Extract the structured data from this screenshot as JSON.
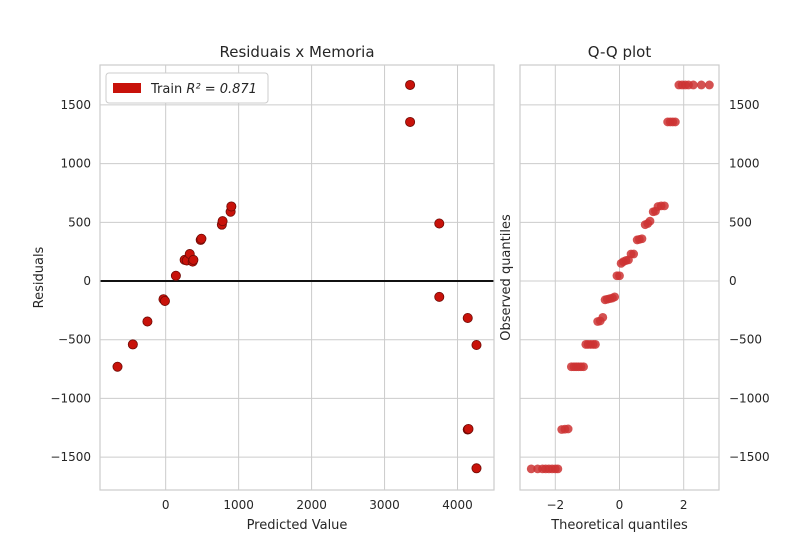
{
  "chart_data": [
    {
      "type": "scatter",
      "title": "Residuais x Memoria",
      "xlabel": "Predicted Value",
      "ylabel": "Residuals",
      "xlim": [
        -900,
        4500
      ],
      "ylim": [
        -1780,
        1840
      ],
      "xticks": [
        0,
        1000,
        2000,
        3000,
        4000
      ],
      "yticks": [
        -1500,
        -1000,
        -500,
        0,
        500,
        1000,
        1500
      ],
      "grid": true,
      "legend": {
        "position": "top-left",
        "label_prefix": "Train ",
        "label_math": "R² = 0.871"
      },
      "zero_line": 0,
      "color": "#c8120a",
      "series": [
        {
          "name": "Train",
          "points": [
            [
              -660,
              -730
            ],
            [
              -450,
              -540
            ],
            [
              -250,
              -345
            ],
            [
              -30,
              -155
            ],
            [
              -10,
              -170
            ],
            [
              140,
              45
            ],
            [
              260,
              180
            ],
            [
              290,
              175
            ],
            [
              330,
              230
            ],
            [
              370,
              165
            ],
            [
              380,
              180
            ],
            [
              480,
              350
            ],
            [
              490,
              360
            ],
            [
              770,
              480
            ],
            [
              780,
              510
            ],
            [
              890,
              590
            ],
            [
              900,
              635
            ],
            [
              3350,
              1670
            ],
            [
              3350,
              1355
            ],
            [
              3750,
              490
            ],
            [
              3750,
              -135
            ],
            [
              4140,
              -315
            ],
            [
              4140,
              -1265
            ],
            [
              4150,
              -1260
            ],
            [
              4260,
              -545
            ],
            [
              4260,
              -1595
            ]
          ]
        }
      ]
    },
    {
      "type": "scatter",
      "title": "Q-Q plot",
      "xlabel": "Theoretical quantiles",
      "ylabel": "Observed quantiles",
      "xlim": [
        -3.1,
        3.1
      ],
      "ylim": [
        -1780,
        1840
      ],
      "xticks": [
        -2,
        0,
        2
      ],
      "yticks": [
        -1500,
        -1000,
        -500,
        0,
        500,
        1000,
        1500
      ],
      "grid": true,
      "color": "#cc3333",
      "series": [
        {
          "name": "Q-Q",
          "points": [
            [
              -2.75,
              -1600
            ],
            [
              -2.55,
              -1600
            ],
            [
              -2.4,
              -1600
            ],
            [
              -2.3,
              -1600
            ],
            [
              -2.2,
              -1600
            ],
            [
              -2.1,
              -1600
            ],
            [
              -2.0,
              -1600
            ],
            [
              -1.92,
              -1600
            ],
            [
              -1.8,
              -1265
            ],
            [
              -1.7,
              -1262
            ],
            [
              -1.6,
              -1260
            ],
            [
              -1.5,
              -730
            ],
            [
              -1.42,
              -730
            ],
            [
              -1.35,
              -730
            ],
            [
              -1.28,
              -730
            ],
            [
              -1.2,
              -730
            ],
            [
              -1.12,
              -730
            ],
            [
              -1.05,
              -540
            ],
            [
              -0.98,
              -540
            ],
            [
              -0.9,
              -540
            ],
            [
              -0.82,
              -540
            ],
            [
              -0.75,
              -540
            ],
            [
              -0.68,
              -345
            ],
            [
              -0.6,
              -340
            ],
            [
              -0.52,
              -310
            ],
            [
              -0.45,
              -160
            ],
            [
              -0.38,
              -155
            ],
            [
              -0.3,
              -150
            ],
            [
              -0.22,
              -145
            ],
            [
              -0.15,
              -135
            ],
            [
              -0.08,
              45
            ],
            [
              0.0,
              45
            ],
            [
              0.05,
              150
            ],
            [
              0.12,
              165
            ],
            [
              0.2,
              175
            ],
            [
              0.28,
              180
            ],
            [
              0.36,
              230
            ],
            [
              0.44,
              230
            ],
            [
              0.55,
              350
            ],
            [
              0.62,
              355
            ],
            [
              0.7,
              360
            ],
            [
              0.8,
              480
            ],
            [
              0.88,
              490
            ],
            [
              0.95,
              510
            ],
            [
              1.05,
              590
            ],
            [
              1.12,
              595
            ],
            [
              1.2,
              635
            ],
            [
              1.3,
              640
            ],
            [
              1.4,
              640
            ],
            [
              1.5,
              1355
            ],
            [
              1.58,
              1355
            ],
            [
              1.66,
              1355
            ],
            [
              1.74,
              1355
            ],
            [
              1.85,
              1670
            ],
            [
              1.95,
              1670
            ],
            [
              2.05,
              1670
            ],
            [
              2.15,
              1670
            ],
            [
              2.3,
              1670
            ],
            [
              2.55,
              1670
            ],
            [
              2.8,
              1670
            ]
          ]
        }
      ]
    }
  ]
}
